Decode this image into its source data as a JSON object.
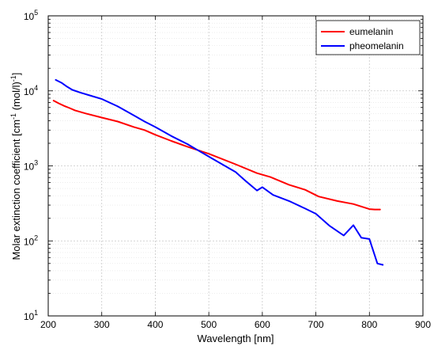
{
  "chart_data": {
    "type": "line",
    "xlabel": "Wavelength [nm]",
    "ylabel_parts": [
      "Molar extinction coefficient [cm",
      "-1",
      " (mol/l)",
      "-1",
      "]"
    ],
    "xlim": [
      200,
      900
    ],
    "ylim": [
      10,
      100000
    ],
    "yscale": "log",
    "grid": true,
    "legend_position": "top-right",
    "x_ticks": [
      "200",
      "300",
      "400",
      "500",
      "600",
      "700",
      "800",
      "900"
    ],
    "y_ticks": [
      {
        "base": "10",
        "exp": "1"
      },
      {
        "base": "10",
        "exp": "2"
      },
      {
        "base": "10",
        "exp": "3"
      },
      {
        "base": "10",
        "exp": "4"
      },
      {
        "base": "10",
        "exp": "5"
      }
    ],
    "series": [
      {
        "name": "eumelanin",
        "color": "#ff0000",
        "x": [
          210,
          220,
          230,
          240,
          250,
          270,
          300,
          330,
          360,
          380,
          400,
          430,
          460,
          500,
          550,
          590,
          615,
          650,
          680,
          705,
          740,
          770,
          800,
          810,
          820
        ],
        "y": [
          7400,
          6800,
          6300,
          5900,
          5500,
          5000,
          4400,
          3900,
          3300,
          3000,
          2600,
          2150,
          1800,
          1450,
          1050,
          800,
          710,
          560,
          480,
          390,
          340,
          310,
          265,
          262,
          262
        ]
      },
      {
        "name": "pheomelanin",
        "color": "#0000ff",
        "x": [
          214,
          225,
          235,
          245,
          260,
          280,
          300,
          330,
          360,
          380,
          400,
          430,
          460,
          500,
          530,
          550,
          570,
          590,
          600,
          620,
          650,
          680,
          700,
          725,
          752,
          770,
          785,
          800,
          815,
          825
        ],
        "y": [
          14000,
          12800,
          11400,
          10300,
          9500,
          8600,
          7800,
          6200,
          4700,
          3900,
          3300,
          2500,
          1950,
          1330,
          1000,
          830,
          620,
          470,
          520,
          410,
          340,
          270,
          230,
          160,
          118,
          162,
          110,
          106,
          50,
          48
        ]
      }
    ]
  }
}
